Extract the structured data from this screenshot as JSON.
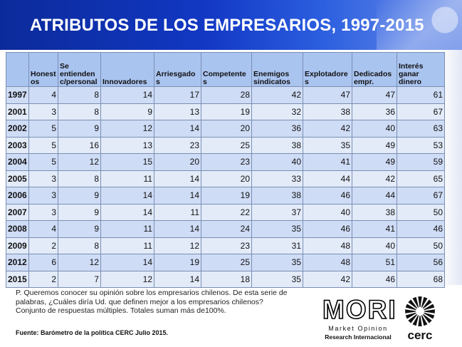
{
  "slide": {
    "title": "ATRIBUTOS DE LOS EMPRESARIOS, 1997-2015",
    "question": "P. Queremos conocer su opinión sobre los empresarios chilenos. De esta serie de palabras, ¿Cuáles diría Ud. que definen mejor a los empresarios chilenos?",
    "note": "Conjunto de respuestas múltiples. Totales suman más de100%.",
    "source": "Fuente: Barómetro de la política CERC Julio 2015."
  },
  "logos": {
    "mori": {
      "word": "MORI",
      "line1": "Market Opinion",
      "line2": "Research Internacional"
    },
    "cerc": {
      "word": "cerc"
    }
  },
  "colors": {
    "banner": "#1238c4",
    "header_fill": "#aac4f0",
    "row_fill_a": "#cfdcf6",
    "row_fill_b": "#e3ebf9"
  },
  "chart_data": {
    "type": "table",
    "title": "ATRIBUTOS DE LOS EMPRESARIOS, 1997-2015",
    "columns": [
      "Honestos",
      "Se entienden c/personal",
      "Innovadores",
      "Arriesgados",
      "Competentes",
      "Enemigos sindicatos",
      "Explotadores",
      "Dedicados empr.",
      "Interés ganar dinero"
    ],
    "column_display": [
      "Honest os",
      "Se entienden c/personal",
      "Innovadores",
      "Arriesgados",
      "Competentes",
      "Enemigos sindicatos",
      "Explotadores",
      "Dedicados empr.",
      "Interés ganar dinero"
    ],
    "rows": [
      {
        "year": "1997",
        "values": [
          4,
          8,
          14,
          17,
          28,
          42,
          47,
          47,
          61
        ]
      },
      {
        "year": "2001",
        "values": [
          3,
          8,
          9,
          13,
          19,
          32,
          38,
          36,
          67
        ]
      },
      {
        "year": "2002",
        "values": [
          5,
          9,
          12,
          14,
          20,
          36,
          42,
          40,
          63
        ]
      },
      {
        "year": "2003",
        "values": [
          5,
          16,
          13,
          23,
          25,
          38,
          35,
          49,
          53
        ]
      },
      {
        "year": "2004",
        "values": [
          5,
          12,
          15,
          20,
          23,
          40,
          41,
          49,
          59
        ]
      },
      {
        "year": "2005",
        "values": [
          3,
          8,
          11,
          14,
          20,
          33,
          44,
          42,
          65
        ]
      },
      {
        "year": "2006",
        "values": [
          3,
          9,
          14,
          14,
          19,
          38,
          46,
          44,
          67
        ]
      },
      {
        "year": "2007",
        "values": [
          3,
          9,
          14,
          11,
          22,
          37,
          40,
          38,
          50
        ]
      },
      {
        "year": "2008",
        "values": [
          4,
          9,
          11,
          14,
          24,
          35,
          46,
          41,
          46
        ]
      },
      {
        "year": "2009",
        "values": [
          2,
          8,
          11,
          12,
          23,
          31,
          48,
          40,
          50
        ]
      },
      {
        "year": "2012",
        "values": [
          6,
          12,
          14,
          19,
          25,
          35,
          48,
          51,
          56
        ]
      },
      {
        "year": "2015",
        "values": [
          2,
          7,
          12,
          14,
          18,
          35,
          42,
          46,
          68
        ]
      }
    ]
  }
}
